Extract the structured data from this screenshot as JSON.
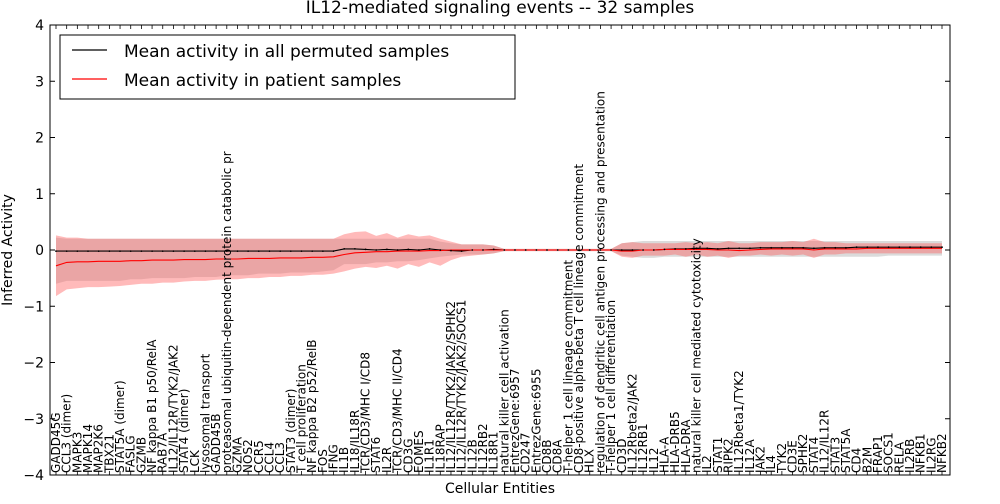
{
  "chart_data": {
    "type": "line",
    "title": "IL12-mediated signaling events -- 32 samples",
    "xlabel": "Cellular Entities",
    "ylabel": "Inferred Activity",
    "ylim": [
      -4,
      4
    ],
    "yticks": [
      -4,
      -3,
      -2,
      -1,
      0,
      1,
      2,
      3,
      4
    ],
    "legend_position": "top-left",
    "categories": [
      "GADD45G",
      "CCL3 (dimer)",
      "MAPK3",
      "MAPK14",
      "MAP2K6",
      "TBX21",
      "STAT5A (dimer)",
      "FASLG",
      "GZMB",
      "NF kappa B1 p50/RelA",
      "RAB7A",
      "IL12/IL12R/TYK2/JAK2",
      "STAT4 (dimer)",
      "LCK",
      "lysosomal transport",
      "GADD45B",
      "proteasomal ubiquitin-dependent protein catabolic pr",
      "GZMA",
      "NOS2",
      "CCR5",
      "CCL4",
      "CCL3",
      "STAT3 (dimer)",
      "T cell proliferation",
      "NF kappa B2 p52/RelB",
      "FOS",
      "IFNG",
      "IL1B",
      "IL18/IL18R",
      "TCR/CD3/MHC I/CD8",
      "STAT6",
      "IL2R",
      "TCR/CD3/MHC II/CD4",
      "CD3G",
      "EOMES",
      "IL1R1",
      "IL18RAP",
      "IL12/IL12R/TYK2/JAK2/SPHK2",
      "IL12/IL12R/TYK2/JAK2/SOCS1",
      "IL12B",
      "IL12RB2",
      "IL18R1",
      "natural killer cell activation",
      "EntrezGene:6957",
      "CD247",
      "EntrezGene:6955",
      "CD8B",
      "CD8A",
      "T-helper 1 cell lineage commitment",
      "CD8-positive alpha-beta T cell lineage commitment",
      "HLX",
      "regulation of dendritic cell antigen processing and presentation",
      "T-helper 1 cell differentiation",
      "CD3D",
      "IL12Rbeta2/JAK2",
      "IL12RB1",
      "IL12",
      "HLA-A",
      "HLA-DRB5",
      "HLA-DRA",
      "natural killer cell mediated cytotoxicity",
      "IL2",
      "STAT1",
      "RIPK2",
      "IL12Rbeta1/TYK2",
      "IL12A",
      "JAK2",
      "IL4",
      "TYK2",
      "CD3E",
      "SPHK2",
      "STAT4",
      "IL12/IL12R",
      "STAT3",
      "STAT5A",
      "CD4",
      "B2M",
      "FRAP1",
      "SOCS1",
      "RELA",
      "IL2RB",
      "NFKB1",
      "IL2RG",
      "NFKB2"
    ],
    "series": [
      {
        "name": "Mean activity in all permuted samples",
        "color": "#000000",
        "values": [
          -0.02,
          -0.02,
          -0.02,
          -0.02,
          -0.02,
          -0.02,
          -0.02,
          -0.02,
          -0.02,
          -0.02,
          -0.02,
          -0.02,
          -0.02,
          -0.02,
          -0.02,
          -0.02,
          -0.02,
          -0.02,
          -0.02,
          -0.02,
          -0.02,
          -0.02,
          -0.02,
          -0.02,
          -0.02,
          -0.02,
          -0.02,
          0.02,
          0.02,
          0.01,
          0.0,
          0.01,
          0.0,
          0.01,
          0.0,
          0.02,
          0.0,
          -0.01,
          -0.02,
          0.0,
          0.0,
          0.01,
          0.0,
          0.0,
          0.0,
          0.0,
          0.0,
          0.0,
          0.0,
          0.0,
          0.0,
          0.0,
          0.0,
          0.0,
          0.0,
          0.0,
          0.0,
          0.01,
          0.02,
          0.02,
          0.03,
          0.03,
          0.02,
          0.03,
          0.03,
          0.03,
          0.04,
          0.04,
          0.04,
          0.04,
          0.04,
          0.03,
          0.04,
          0.04,
          0.04,
          0.05,
          0.05,
          0.05,
          0.05,
          0.05,
          0.05,
          0.05,
          0.05,
          0.05
        ],
        "band_lower": [
          -0.6,
          -0.55,
          -0.55,
          -0.55,
          -0.55,
          -0.55,
          -0.55,
          -0.52,
          -0.52,
          -0.5,
          -0.5,
          -0.5,
          -0.5,
          -0.48,
          -0.48,
          -0.48,
          -0.45,
          -0.45,
          -0.45,
          -0.42,
          -0.42,
          -0.42,
          -0.4,
          -0.4,
          -0.4,
          -0.38,
          -0.36,
          -0.25,
          -0.25,
          -0.25,
          -0.22,
          -0.22,
          -0.2,
          -0.2,
          -0.18,
          -0.15,
          -0.12,
          -0.1,
          -0.08,
          -0.08,
          -0.08,
          -0.06,
          -0.02,
          -0.02,
          -0.02,
          -0.02,
          -0.02,
          -0.02,
          -0.02,
          -0.02,
          -0.02,
          -0.02,
          -0.02,
          -0.1,
          -0.12,
          -0.14,
          -0.14,
          -0.12,
          -0.12,
          -0.12,
          -0.12,
          -0.12,
          -0.12,
          -0.12,
          -0.12,
          -0.12,
          -0.12,
          -0.12,
          -0.12,
          -0.12,
          -0.12,
          -0.12,
          -0.12,
          -0.12,
          -0.12,
          -0.12,
          -0.12,
          -0.12,
          -0.1,
          -0.1,
          -0.1,
          -0.1,
          -0.1,
          -0.1
        ],
        "band_upper": [
          0.22,
          0.2,
          0.2,
          0.2,
          0.2,
          0.2,
          0.2,
          0.2,
          0.2,
          0.2,
          0.2,
          0.2,
          0.2,
          0.2,
          0.2,
          0.2,
          0.2,
          0.2,
          0.2,
          0.2,
          0.2,
          0.2,
          0.2,
          0.2,
          0.2,
          0.2,
          0.2,
          0.2,
          0.2,
          0.2,
          0.2,
          0.2,
          0.2,
          0.2,
          0.2,
          0.2,
          0.15,
          0.12,
          0.1,
          0.1,
          0.1,
          0.08,
          0.02,
          0.02,
          0.02,
          0.02,
          0.02,
          0.02,
          0.02,
          0.02,
          0.02,
          0.02,
          0.02,
          0.12,
          0.14,
          0.16,
          0.16,
          0.16,
          0.16,
          0.16,
          0.16,
          0.16,
          0.16,
          0.16,
          0.16,
          0.16,
          0.16,
          0.16,
          0.16,
          0.16,
          0.16,
          0.16,
          0.16,
          0.16,
          0.16,
          0.16,
          0.16,
          0.16,
          0.16,
          0.16,
          0.16,
          0.16,
          0.16,
          0.16
        ]
      },
      {
        "name": "Mean activity in patient samples",
        "color": "#ff0000",
        "values": [
          -0.28,
          -0.22,
          -0.21,
          -0.21,
          -0.2,
          -0.2,
          -0.2,
          -0.19,
          -0.19,
          -0.18,
          -0.18,
          -0.18,
          -0.17,
          -0.17,
          -0.17,
          -0.16,
          -0.16,
          -0.16,
          -0.15,
          -0.15,
          -0.15,
          -0.14,
          -0.14,
          -0.14,
          -0.13,
          -0.13,
          -0.12,
          -0.08,
          -0.05,
          -0.04,
          -0.03,
          -0.03,
          -0.02,
          -0.02,
          -0.02,
          -0.01,
          -0.01,
          0.0,
          0.0,
          0.0,
          0.0,
          0.0,
          0.0,
          0.0,
          0.0,
          0.0,
          0.0,
          0.0,
          0.0,
          0.0,
          0.0,
          0.0,
          0.0,
          -0.02,
          -0.02,
          0.0,
          0.0,
          0.01,
          0.01,
          0.01,
          0.01,
          0.01,
          0.0,
          0.0,
          -0.01,
          0.0,
          0.01,
          0.02,
          0.02,
          0.02,
          0.02,
          0.0,
          0.02,
          0.02,
          0.02,
          0.02,
          0.03,
          0.03,
          0.03,
          0.03,
          0.03,
          0.03,
          0.03,
          0.03
        ],
        "band_lower": [
          -0.82,
          -0.7,
          -0.68,
          -0.66,
          -0.66,
          -0.65,
          -0.64,
          -0.62,
          -0.6,
          -0.6,
          -0.58,
          -0.58,
          -0.56,
          -0.55,
          -0.55,
          -0.53,
          -0.52,
          -0.52,
          -0.5,
          -0.5,
          -0.48,
          -0.48,
          -0.46,
          -0.46,
          -0.44,
          -0.44,
          -0.42,
          -0.38,
          -0.33,
          -0.3,
          -0.32,
          -0.28,
          -0.33,
          -0.25,
          -0.3,
          -0.22,
          -0.28,
          -0.18,
          -0.12,
          -0.1,
          -0.08,
          -0.06,
          -0.02,
          -0.02,
          -0.02,
          -0.02,
          -0.02,
          -0.02,
          -0.02,
          -0.02,
          -0.02,
          -0.02,
          -0.02,
          -0.12,
          -0.14,
          -0.1,
          -0.1,
          -0.1,
          -0.08,
          -0.12,
          -0.08,
          -0.12,
          -0.1,
          -0.14,
          -0.1,
          -0.1,
          -0.08,
          -0.1,
          -0.08,
          -0.1,
          -0.08,
          -0.14,
          -0.08,
          -0.08,
          -0.06,
          -0.06,
          -0.06,
          -0.06,
          -0.06,
          -0.06,
          -0.06,
          -0.06,
          -0.06,
          -0.06
        ],
        "band_upper": [
          0.26,
          0.22,
          0.22,
          0.2,
          0.2,
          0.2,
          0.2,
          0.2,
          0.2,
          0.2,
          0.2,
          0.2,
          0.2,
          0.2,
          0.2,
          0.2,
          0.2,
          0.2,
          0.2,
          0.2,
          0.2,
          0.2,
          0.2,
          0.2,
          0.2,
          0.2,
          0.2,
          0.28,
          0.32,
          0.33,
          0.25,
          0.3,
          0.22,
          0.28,
          0.24,
          0.26,
          0.2,
          0.15,
          0.1,
          0.1,
          0.1,
          0.08,
          0.02,
          0.02,
          0.02,
          0.02,
          0.02,
          0.02,
          0.02,
          0.02,
          0.02,
          0.02,
          0.02,
          0.12,
          0.14,
          0.12,
          0.12,
          0.12,
          0.12,
          0.14,
          0.12,
          0.14,
          0.12,
          0.16,
          0.12,
          0.12,
          0.14,
          0.14,
          0.14,
          0.16,
          0.14,
          0.2,
          0.14,
          0.14,
          0.12,
          0.12,
          0.12,
          0.12,
          0.12,
          0.12,
          0.12,
          0.12,
          0.12,
          0.12
        ]
      }
    ]
  }
}
